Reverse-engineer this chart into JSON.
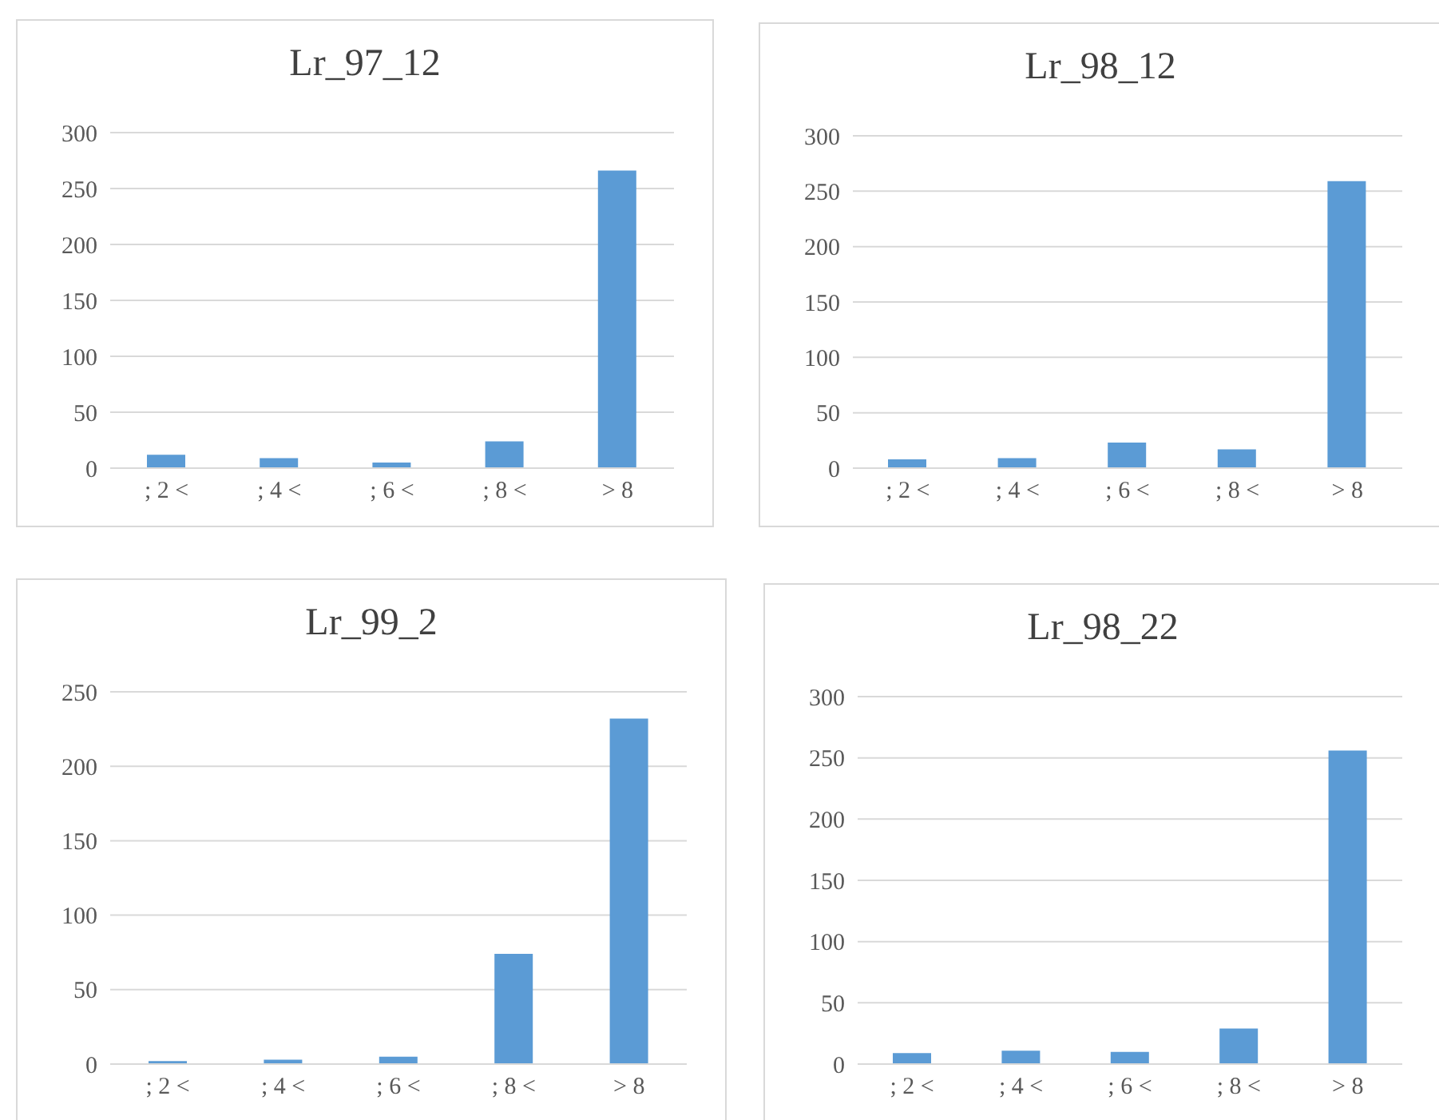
{
  "chart_data": [
    {
      "type": "bar",
      "title": "Lr_97_12",
      "categories": [
        "; 2 <",
        "; 4 <",
        "; 6 <",
        "; 8 <",
        "> 8"
      ],
      "values": [
        12,
        9,
        5,
        24,
        266
      ],
      "color": "#5b9bd5",
      "ylim": [
        0,
        300
      ],
      "yticks": [
        0,
        50,
        100,
        150,
        200,
        250,
        300
      ],
      "grid": "y",
      "legend": false
    },
    {
      "type": "bar",
      "title": "Lr_98_12",
      "categories": [
        "; 2 <",
        "; 4 <",
        "; 6 <",
        "; 8 <",
        "> 8"
      ],
      "values": [
        8,
        9,
        23,
        17,
        259
      ],
      "color": "#5b9bd5",
      "ylim": [
        0,
        300
      ],
      "yticks": [
        0,
        50,
        100,
        150,
        200,
        250,
        300
      ],
      "grid": "y",
      "legend": false
    },
    {
      "type": "bar",
      "title": "Lr_99_2",
      "categories": [
        "; 2 <",
        "; 4 <",
        "; 6 <",
        "; 8 <",
        "> 8"
      ],
      "values": [
        2,
        3,
        5,
        74,
        232
      ],
      "color": "#5b9bd5",
      "ylim": [
        0,
        250
      ],
      "yticks": [
        0,
        50,
        100,
        150,
        200,
        250
      ],
      "grid": "y",
      "legend": false
    },
    {
      "type": "bar",
      "title": "Lr_98_22",
      "categories": [
        "; 2 <",
        "; 4 <",
        "; 6 <",
        "; 8 <",
        "> 8"
      ],
      "values": [
        9,
        11,
        10,
        29,
        256
      ],
      "color": "#5b9bd5",
      "ylim": [
        0,
        300
      ],
      "yticks": [
        0,
        50,
        100,
        150,
        200,
        250,
        300
      ],
      "grid": "y",
      "legend": false
    }
  ]
}
